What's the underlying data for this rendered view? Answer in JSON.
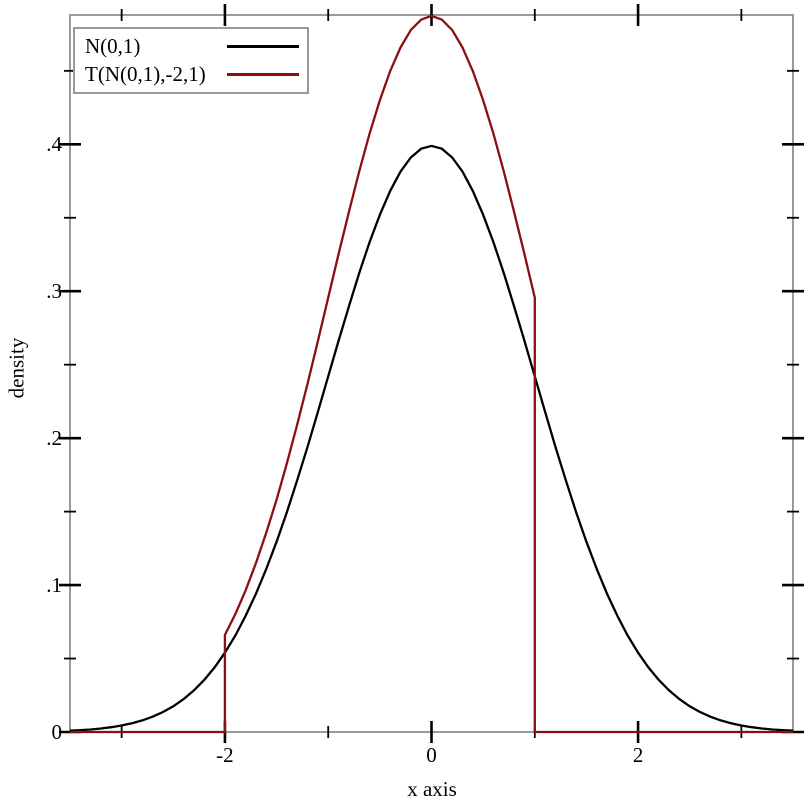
{
  "figure": {
    "background": "#ffffff",
    "frame_color": "#9a9a9a",
    "tick_color": "#000000",
    "text_color": "#000000"
  },
  "chart_data": {
    "type": "line",
    "title": "",
    "xlabel": "x axis",
    "ylabel": "density",
    "xlim": [
      -3.5,
      3.5
    ],
    "ylim": [
      0,
      0.488
    ],
    "grid": false,
    "legend_position": "top-left",
    "x_major_ticks": [
      -2,
      0,
      2
    ],
    "x_major_tick_labels": [
      "-2",
      "0",
      "2"
    ],
    "x_minor_ticks": [
      -3,
      -1,
      1,
      3
    ],
    "y_major_ticks": [
      0,
      0.1,
      0.2,
      0.3,
      0.4
    ],
    "y_major_tick_labels": [
      "0",
      ".1",
      ".2",
      ".3",
      ".4"
    ],
    "y_minor_ticks": [
      0.05,
      0.15,
      0.25,
      0.35,
      0.45
    ],
    "series": [
      {
        "name": "N(0,1)",
        "color": "#000000",
        "points": [
          [
            -3.5,
            0.0009
          ],
          [
            -3.4,
            0.0012
          ],
          [
            -3.3,
            0.0017
          ],
          [
            -3.2,
            0.0024
          ],
          [
            -3.1,
            0.0033
          ],
          [
            -3.0,
            0.0044
          ],
          [
            -2.9,
            0.006
          ],
          [
            -2.8,
            0.0079
          ],
          [
            -2.7,
            0.0104
          ],
          [
            -2.6,
            0.0136
          ],
          [
            -2.5,
            0.0175
          ],
          [
            -2.4,
            0.0224
          ],
          [
            -2.3,
            0.0283
          ],
          [
            -2.2,
            0.0355
          ],
          [
            -2.1,
            0.044
          ],
          [
            -2.0,
            0.054
          ],
          [
            -1.9,
            0.0656
          ],
          [
            -1.8,
            0.079
          ],
          [
            -1.7,
            0.094
          ],
          [
            -1.6,
            0.1109
          ],
          [
            -1.5,
            0.1295
          ],
          [
            -1.4,
            0.1497
          ],
          [
            -1.3,
            0.1714
          ],
          [
            -1.2,
            0.1942
          ],
          [
            -1.1,
            0.2179
          ],
          [
            -1.0,
            0.242
          ],
          [
            -0.9,
            0.2661
          ],
          [
            -0.8,
            0.2897
          ],
          [
            -0.7,
            0.3123
          ],
          [
            -0.6,
            0.3332
          ],
          [
            -0.5,
            0.3521
          ],
          [
            -0.4,
            0.3683
          ],
          [
            -0.3,
            0.3814
          ],
          [
            -0.2,
            0.391
          ],
          [
            -0.1,
            0.397
          ],
          [
            0,
            0.3989
          ],
          [
            0.1,
            0.397
          ],
          [
            0.2,
            0.391
          ],
          [
            0.3,
            0.3814
          ],
          [
            0.4,
            0.3683
          ],
          [
            0.5,
            0.3521
          ],
          [
            0.6,
            0.3332
          ],
          [
            0.7,
            0.3123
          ],
          [
            0.8,
            0.2897
          ],
          [
            0.9,
            0.2661
          ],
          [
            1.0,
            0.242
          ],
          [
            1.1,
            0.2179
          ],
          [
            1.2,
            0.1942
          ],
          [
            1.3,
            0.1714
          ],
          [
            1.4,
            0.1497
          ],
          [
            1.5,
            0.1295
          ],
          [
            1.6,
            0.1109
          ],
          [
            1.7,
            0.094
          ],
          [
            1.8,
            0.079
          ],
          [
            1.9,
            0.0656
          ],
          [
            2.0,
            0.054
          ],
          [
            2.1,
            0.044
          ],
          [
            2.2,
            0.0355
          ],
          [
            2.3,
            0.0283
          ],
          [
            2.4,
            0.0224
          ],
          [
            2.5,
            0.0175
          ],
          [
            2.6,
            0.0136
          ],
          [
            2.7,
            0.0104
          ],
          [
            2.8,
            0.0079
          ],
          [
            2.9,
            0.006
          ],
          [
            3.0,
            0.0044
          ],
          [
            3.1,
            0.0033
          ],
          [
            3.2,
            0.0024
          ],
          [
            3.3,
            0.0017
          ],
          [
            3.4,
            0.0012
          ],
          [
            3.5,
            0.0009
          ]
        ]
      },
      {
        "name": "T(N(0,1),-2,1)",
        "color": "#8b0f0f",
        "points": [
          [
            -3.5,
            0
          ],
          [
            -2,
            0
          ],
          [
            -2,
            0.066
          ],
          [
            -1.9,
            0.0802
          ],
          [
            -1.8,
            0.0964
          ],
          [
            -1.7,
            0.1149
          ],
          [
            -1.6,
            0.1355
          ],
          [
            -1.5,
            0.1582
          ],
          [
            -1.4,
            0.1829
          ],
          [
            -1.3,
            0.2093
          ],
          [
            -1.2,
            0.2372
          ],
          [
            -1.1,
            0.2661
          ],
          [
            -1.0,
            0.2956
          ],
          [
            -0.9,
            0.3251
          ],
          [
            -0.8,
            0.3539
          ],
          [
            -0.7,
            0.3815
          ],
          [
            -0.6,
            0.4071
          ],
          [
            -0.5,
            0.4301
          ],
          [
            -0.4,
            0.4499
          ],
          [
            -0.3,
            0.4659
          ],
          [
            -0.2,
            0.4777
          ],
          [
            -0.1,
            0.4849
          ],
          [
            0,
            0.4874
          ],
          [
            0.1,
            0.4849
          ],
          [
            0.2,
            0.4777
          ],
          [
            0.3,
            0.4659
          ],
          [
            0.4,
            0.4499
          ],
          [
            0.5,
            0.4301
          ],
          [
            0.6,
            0.4071
          ],
          [
            0.7,
            0.3815
          ],
          [
            0.8,
            0.3539
          ],
          [
            0.9,
            0.3251
          ],
          [
            1.0,
            0.2956
          ],
          [
            1.0,
            0
          ],
          [
            3.5,
            0
          ]
        ]
      }
    ]
  }
}
